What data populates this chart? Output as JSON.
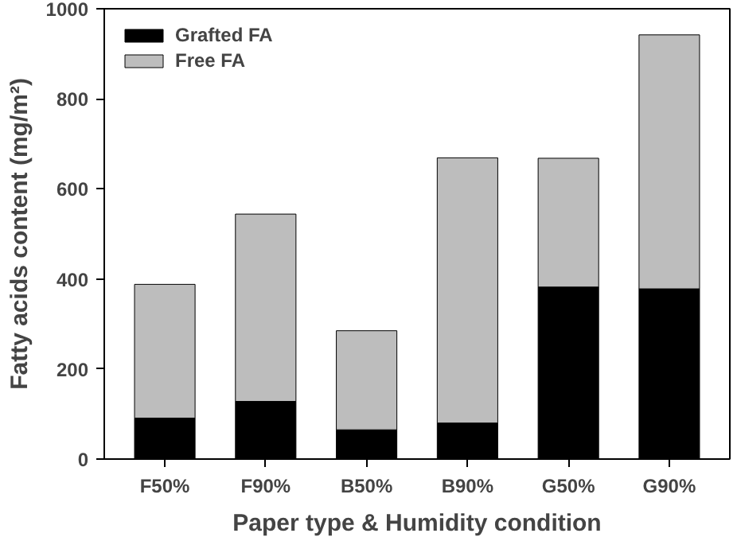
{
  "chart_data": {
    "type": "bar",
    "stacked": true,
    "xlabel": "Paper type & Humidity condition",
    "ylabel": "Fatty acids content (mg/m²)",
    "categories": [
      "F50%",
      "F90%",
      "B50%",
      "B90%",
      "G50%",
      "G90%"
    ],
    "series": [
      {
        "name": "Grafted FA",
        "color": "#000000",
        "values": [
          91,
          128,
          65,
          80,
          382,
          378
        ]
      },
      {
        "name": "Free FA",
        "color": "#bdbdbd",
        "values": [
          297,
          416,
          220,
          589,
          286,
          564
        ]
      }
    ],
    "ylim": [
      0,
      1000
    ],
    "yticks": [
      0,
      200,
      400,
      600,
      800,
      1000
    ],
    "legend": "top left",
    "grid": false
  }
}
